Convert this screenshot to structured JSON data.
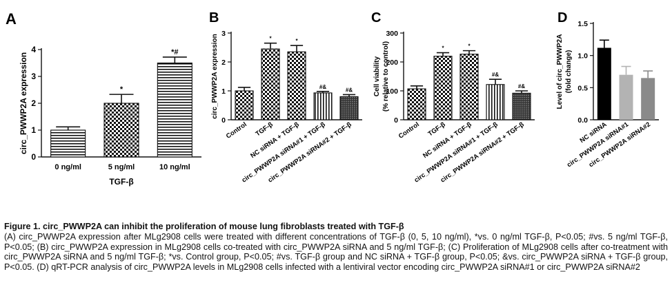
{
  "chart_data": [
    {
      "panel": "A",
      "type": "bar",
      "xlabel": "TGF-β",
      "ylabel": "circ_PWWP2A expression",
      "ylim": [
        0,
        4
      ],
      "yticks": [
        "0",
        "1",
        "2",
        "3",
        "4"
      ],
      "categories": [
        "0 ng/ml",
        "5 ng/ml",
        "10 ng/ml"
      ],
      "values": [
        1.0,
        2.0,
        3.5
      ],
      "errors": [
        0.12,
        0.33,
        0.22
      ],
      "annotations": [
        "",
        "*",
        "*#"
      ],
      "patterns": [
        "hlines",
        "checker",
        "hlines"
      ]
    },
    {
      "panel": "B",
      "type": "bar",
      "ylabel": "circ_PWWP2A expression",
      "ylim": [
        0,
        3
      ],
      "yticks": [
        "0",
        "1",
        "2",
        "3"
      ],
      "categories": [
        "Control",
        "TGF-β",
        "NC siRNA + TGF-β",
        "circ_PWWP2A siRNA#1 + TGF-β",
        "circ_PWWP2A siRNA#2 + TGF-β"
      ],
      "values": [
        1.0,
        2.45,
        2.35,
        0.93,
        0.8
      ],
      "errors": [
        0.12,
        0.2,
        0.22,
        0.05,
        0.07
      ],
      "annotations": [
        "",
        "*",
        "*",
        "#&",
        "#&"
      ],
      "patterns": [
        "checker",
        "checker",
        "checker",
        "vlines",
        "dense"
      ]
    },
    {
      "panel": "C",
      "type": "bar",
      "ylabel": "Cell viability (% relative to control)",
      "ylabel_lines": [
        "Cell viability",
        "(% relative to control)"
      ],
      "ylim": [
        0,
        300
      ],
      "yticks": [
        "0",
        "100",
        "200",
        "300"
      ],
      "categories": [
        "Control",
        "TGF-β",
        "NC siRNA + TGF-β",
        "circ_PWWP2A siRNA#1 + TGF-β",
        "circ_PWWP2A siRNA#2 + TGF-β"
      ],
      "values": [
        107,
        220,
        227,
        122,
        92
      ],
      "errors": [
        10,
        12,
        12,
        18,
        8
      ],
      "annotations": [
        "",
        "*",
        "*",
        "#&",
        "#&"
      ],
      "patterns": [
        "checker",
        "checker",
        "checker",
        "vlines",
        "dense"
      ]
    },
    {
      "panel": "D",
      "type": "bar",
      "ylabel": "Level of circ_PWWP2A (fold change)",
      "ylabel_lines": [
        "Level of circ_PWWP2A",
        "(fold change)"
      ],
      "ylim": [
        0,
        1.5
      ],
      "yticks": [
        "0.0",
        "0.5",
        "1.0",
        "1.5"
      ],
      "categories": [
        "NC siRNA",
        "circ_PWWP2A siRNA#1",
        "circ_PWWP2A siRNA#2"
      ],
      "values": [
        1.12,
        0.7,
        0.65
      ],
      "errors": [
        0.12,
        0.13,
        0.11
      ],
      "annotations": [
        "",
        "",
        ""
      ],
      "colors": [
        "#000000",
        "#b3b3b3",
        "#8a8a8a"
      ]
    }
  ],
  "caption": {
    "title": "Figure 1. circ_PWWP2A can inhibit the proliferation of mouse lung fibroblasts treated with TGF-β",
    "body": "(A) circ_PWWP2A expression after MLg2908 cells were treated with different concentrations of TGF-β (0, 5, 10 ng/ml), *vs. 0 ng/ml TGF-β, P<0.05; #vs. 5 ng/ml TGF-β, P<0.05; (B) circ_PWWP2A expression in MLg2908 cells co-treated with circ_PWWP2A siRNA and 5 ng/ml TGF-β; (C) Proliferation of MLg2908 cells after co-treatment with circ_PWWP2A siRNA and 5 ng/ml TGF-β; *vs. Control group, P<0.05; #vs. TGF-β group and NC siRNA + TGF-β group, P<0.05; &vs. circ_PWWP2A siRNA + TGF-β group, P<0.05. (D) qRT-PCR analysis of circ_PWWP2A levels in MLg2908 cells infected with a lentiviral vector encoding circ_PWWP2A siRNA#1 or circ_PWWP2A siRNA#2"
  }
}
